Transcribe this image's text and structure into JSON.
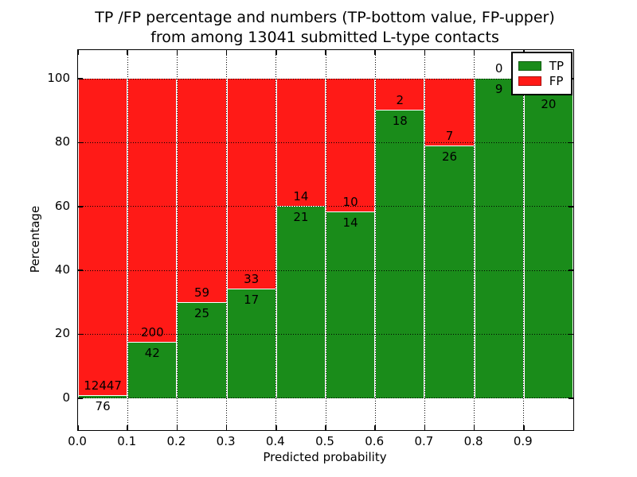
{
  "chart_data": {
    "type": "bar",
    "stacked": true,
    "title": "TP /FP percentage and numbers (TP-bottom value, FP-upper)",
    "subtitle": "from among 13041 submitted L-type contacts",
    "xlabel": "Predicted probability",
    "ylabel": "Percentage",
    "xlim": [
      0.0,
      1.0
    ],
    "ylim": [
      -10,
      109
    ],
    "x_ticks": [
      0.0,
      0.1,
      0.2,
      0.3,
      0.4,
      0.5,
      0.6,
      0.7,
      0.8,
      0.9
    ],
    "x_tick_labels": [
      "0.0",
      "0.1",
      "0.2",
      "0.3",
      "0.4",
      "0.5",
      "0.6",
      "0.7",
      "0.8",
      "0.9"
    ],
    "y_ticks": [
      0,
      20,
      40,
      60,
      80,
      100
    ],
    "y_tick_labels": [
      "0",
      "20",
      "40",
      "60",
      "80",
      "100"
    ],
    "grid": "dotted",
    "bin_width": 0.1,
    "bin_starts": [
      0.0,
      0.1,
      0.2,
      0.3,
      0.4,
      0.5,
      0.6,
      0.7,
      0.8,
      0.9
    ],
    "series": [
      {
        "name": "TP",
        "color": "#1a8c1a",
        "counts": [
          76,
          42,
          25,
          17,
          21,
          14,
          18,
          26,
          9,
          20
        ],
        "pct": [
          0.6,
          17.4,
          29.8,
          34.0,
          60.0,
          58.3,
          90.0,
          78.8,
          100.0,
          95.2
        ],
        "labels": [
          "76",
          "42",
          "25",
          "17",
          "21",
          "14",
          "18",
          "26",
          "9",
          "20"
        ]
      },
      {
        "name": "FP",
        "color": "#ff1a17",
        "counts": [
          12447,
          200,
          59,
          33,
          14,
          10,
          2,
          7,
          0,
          null
        ],
        "pct": [
          99.4,
          82.6,
          70.2,
          66.0,
          40.0,
          41.7,
          10.0,
          21.2,
          0.0,
          4.8
        ],
        "labels": [
          "12447",
          "200",
          "59",
          "33",
          "14",
          "10",
          "2",
          "7",
          "0",
          ""
        ]
      }
    ],
    "legend": {
      "position": "upper right",
      "entries": [
        {
          "label": "TP",
          "color": "#1a8c1a"
        },
        {
          "label": "FP",
          "color": "#ff1a17"
        }
      ]
    }
  }
}
